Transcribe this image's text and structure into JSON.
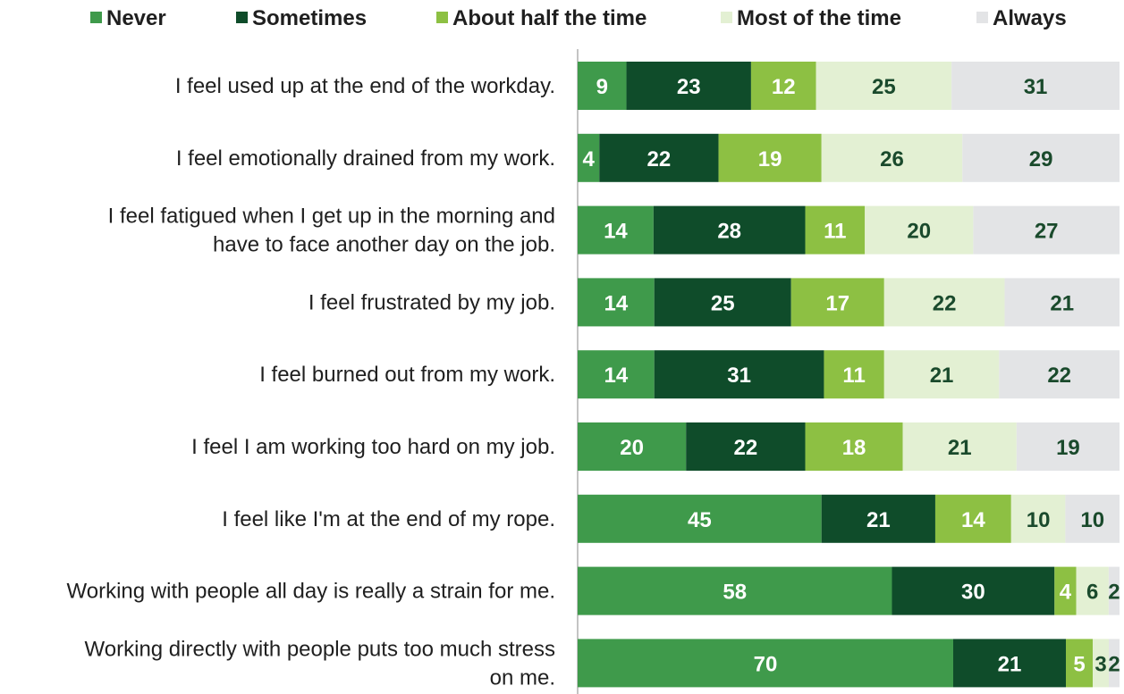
{
  "chart_data": {
    "type": "bar",
    "orientation": "horizontal",
    "stacked": true,
    "legend_position": "top",
    "grid": false,
    "xlim": [
      0,
      100
    ],
    "categories": [
      [
        "I feel used up at the end of the workday."
      ],
      [
        "I feel emotionally drained from my work."
      ],
      [
        "I feel fatigued when I get up in the morning and",
        "have to face another day on the job."
      ],
      [
        "I feel frustrated by my job."
      ],
      [
        "I feel burned out from my work."
      ],
      [
        "I feel I am working too hard on my job."
      ],
      [
        "I feel like I'm at the end of my rope."
      ],
      [
        "Working with people all day is really a strain for me."
      ],
      [
        "Working directly with people puts too much stress",
        "on me."
      ]
    ],
    "series": [
      {
        "name": "Never",
        "color": "#3f9a4b",
        "label_color": "#ffffff",
        "values": [
          9,
          4,
          14,
          14,
          14,
          20,
          45,
          58,
          70
        ]
      },
      {
        "name": "Sometimes",
        "color": "#0f4c2a",
        "label_color": "#ffffff",
        "values": [
          23,
          22,
          28,
          25,
          31,
          22,
          21,
          30,
          21
        ]
      },
      {
        "name": "About half the time",
        "color": "#8dc043",
        "label_color": "#ffffff",
        "values": [
          12,
          19,
          11,
          17,
          11,
          18,
          14,
          4,
          5
        ]
      },
      {
        "name": "Most of the time",
        "color": "#e3f0d3",
        "label_color": "#1a4a2c",
        "values": [
          25,
          26,
          20,
          22,
          21,
          21,
          10,
          6,
          3
        ]
      },
      {
        "name": "Always",
        "color": "#e3e4e6",
        "label_color": "#1a4a2c",
        "values": [
          31,
          29,
          27,
          21,
          22,
          19,
          10,
          2,
          2
        ]
      }
    ]
  }
}
